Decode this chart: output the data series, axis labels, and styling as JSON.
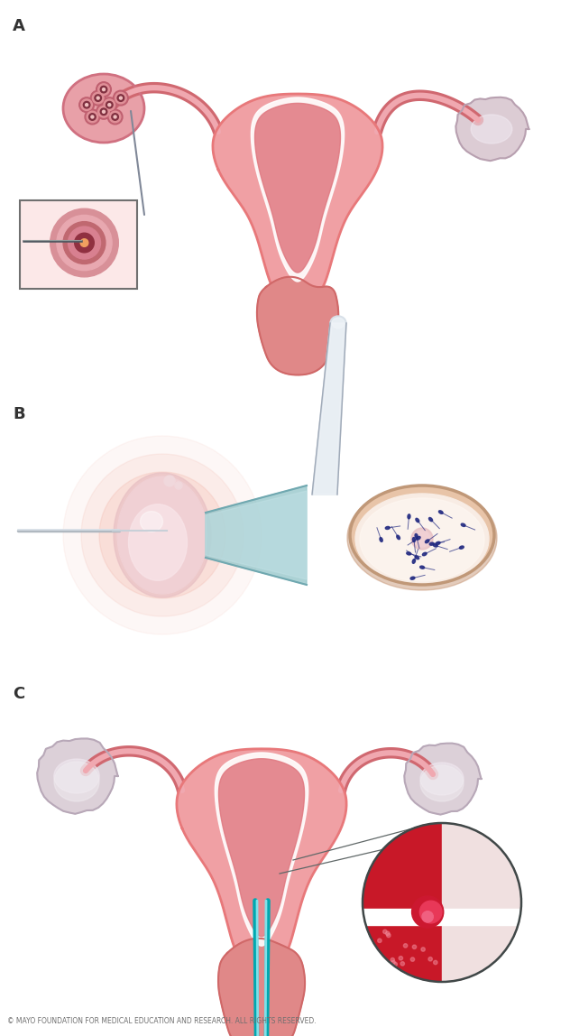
{
  "background_color": "#ffffff",
  "label_A": "A",
  "label_B": "B",
  "label_C": "C",
  "copyright": "© MAYO FOUNDATION FOR MEDICAL EDUCATION AND RESEARCH. ALL RIGHTS RESERVED.",
  "uterus_outer": "#e8878a",
  "uterus_fill": "#f0a0a4",
  "uterus_inner_fill": "#e07880",
  "cavity_fill": "#d86870",
  "cavity_white": "#f8e0e0",
  "tube_color": "#e07880",
  "tube_highlight": "#f0a0a4",
  "ovary_left_fill": "#e8a0b0",
  "ovary_right_fill": "#dcccd8",
  "follicle_outer": "#d07080",
  "follicle_inner": "#f0b0b8",
  "needle_dark": "#606870",
  "needle_light": "#e0e8f0",
  "probe_dark": "#9090a0",
  "probe_light": "#f0f4f8",
  "egg_outer": "#f0d4d8",
  "egg_inner": "#f8e0e4",
  "egg_core": "#e8c8cc",
  "pipette_color": "#a0c8d0",
  "petri_rim": "#c0907860",
  "petri_fill": "#f8ece4",
  "sperm_color": "#202080",
  "inset_bg": "#f8e8e8",
  "inset_follicle": "#d07888",
  "embryo_red": "#cc1830",
  "embryo_pink": "#f0b0b8",
  "wall_light": "#f8e8e8",
  "wall_pink": "#f0c8c8"
}
